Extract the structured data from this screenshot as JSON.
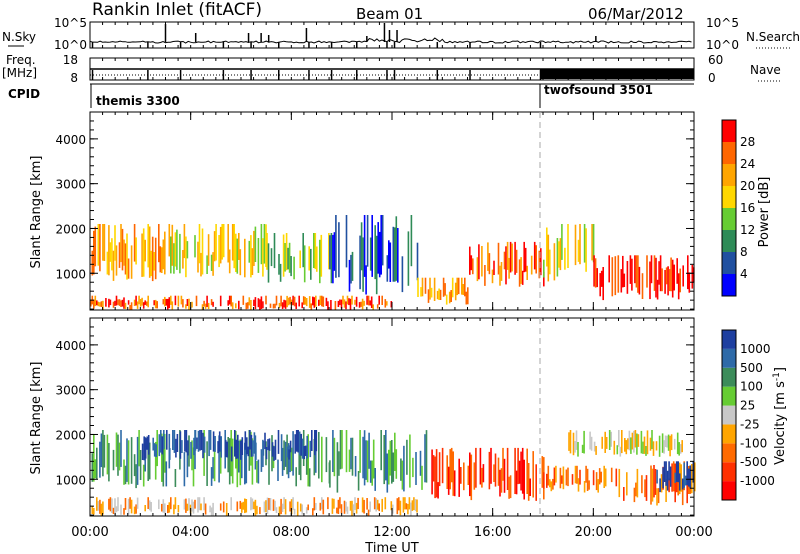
{
  "header": {
    "station": "Rankin Inlet (fitACF)",
    "beam": "Beam 01",
    "date": "06/Mar/2012"
  },
  "noise_panel": {
    "left_label": "N.Sky",
    "left_ticks": [
      "10^5",
      "10^0"
    ],
    "right_label": "N.Search",
    "right_ticks": [
      "10^5",
      "10^0"
    ]
  },
  "freq_panel": {
    "left_label": "Freq.",
    "left_unit": "[MHz]",
    "left_ticks": [
      "18",
      "8"
    ],
    "right_label": "Nave",
    "right_ticks": [
      "60",
      "0"
    ]
  },
  "cpid": {
    "label": "CPID",
    "modes": [
      {
        "name": "themis 3300",
        "start_hour": 0
      },
      {
        "name": "twofsound 3501",
        "start_hour": 18
      }
    ]
  },
  "time_axis": {
    "label": "Time UT",
    "ticks": [
      "00:00",
      "04:00",
      "08:00",
      "12:00",
      "16:00",
      "20:00",
      "00:00"
    ]
  },
  "range_axis": {
    "label": "Slant Range [km]",
    "ticks": [
      "1000",
      "2000",
      "3000",
      "4000"
    ]
  },
  "power_scale": {
    "label": "Power [dB]",
    "ticks": [
      "4",
      "8",
      "12",
      "16",
      "20",
      "24",
      "28"
    ],
    "colors": [
      "#0000ff",
      "#2050a0",
      "#2e8b57",
      "#66cc33",
      "#ffd700",
      "#ffa500",
      "#ff6600",
      "#ff0000"
    ]
  },
  "velocity_scale": {
    "label": "Velocity [m s",
    "label_sup": "-1",
    "label_end": "]",
    "ticks": [
      "1000",
      "500",
      "100",
      "25",
      "-25",
      "-100",
      "-500",
      "-1000"
    ],
    "colors": [
      "#1e3fa0",
      "#2e6aa8",
      "#3c8c5a",
      "#66cc33",
      "#c8c8c8",
      "#ffa500",
      "#ff6a00",
      "#ff3000",
      "#ff0000"
    ]
  },
  "chart_data": {
    "type": "heatmap",
    "x_range_hours": [
      0,
      24
    ],
    "y_range_km": [
      180,
      4600
    ],
    "y_tick_values_km": [
      1000,
      2000,
      3000,
      4000
    ],
    "mode_change_hour": 18,
    "panels": [
      {
        "name": "Power",
        "clusters": [
          {
            "t0": 0.0,
            "t1": 3.0,
            "r0": 800,
            "r1": 2100,
            "c": 5
          },
          {
            "t0": 3.0,
            "t1": 7.0,
            "r0": 900,
            "r1": 2100,
            "c": 4
          },
          {
            "t0": 7.0,
            "t1": 9.5,
            "r0": 700,
            "r1": 1900,
            "c": 3
          },
          {
            "t0": 9.5,
            "t1": 13.0,
            "r0": 500,
            "r1": 2300,
            "c": 1
          },
          {
            "t0": 13.0,
            "t1": 15.0,
            "r0": 300,
            "r1": 900,
            "c": 5
          },
          {
            "t0": 15.0,
            "t1": 18.0,
            "r0": 700,
            "r1": 1700,
            "c": 6
          },
          {
            "t0": 18.0,
            "t1": 20.0,
            "r0": 800,
            "r1": 2100,
            "c": 4
          },
          {
            "t0": 20.0,
            "t1": 24.0,
            "r0": 400,
            "r1": 1400,
            "c": 7
          },
          {
            "t0": 0.0,
            "t1": 12.0,
            "r0": 180,
            "r1": 500,
            "c": 6
          }
        ]
      },
      {
        "name": "Velocity",
        "clusters": [
          {
            "t0": 0.0,
            "t1": 9.5,
            "r0": 800,
            "r1": 2100,
            "c": 2
          },
          {
            "t0": 2.0,
            "t1": 9.0,
            "r0": 1400,
            "r1": 2100,
            "c": 0
          },
          {
            "t0": 9.5,
            "t1": 13.5,
            "r0": 700,
            "r1": 2100,
            "c": 2
          },
          {
            "t0": 0.0,
            "t1": 13.0,
            "r0": 180,
            "r1": 600,
            "c": 5
          },
          {
            "t0": 13.5,
            "t1": 18.0,
            "r0": 500,
            "r1": 1700,
            "c": 7
          },
          {
            "t0": 18.0,
            "t1": 21.0,
            "r0": 700,
            "r1": 1300,
            "c": 6
          },
          {
            "t0": 19.0,
            "t1": 23.5,
            "r0": 1500,
            "r1": 2100,
            "c": 4
          },
          {
            "t0": 21.0,
            "t1": 24.0,
            "r0": 400,
            "r1": 1400,
            "c": 6
          },
          {
            "t0": 22.5,
            "t1": 24.0,
            "r0": 700,
            "r1": 1400,
            "c": 0
          }
        ]
      }
    ]
  }
}
